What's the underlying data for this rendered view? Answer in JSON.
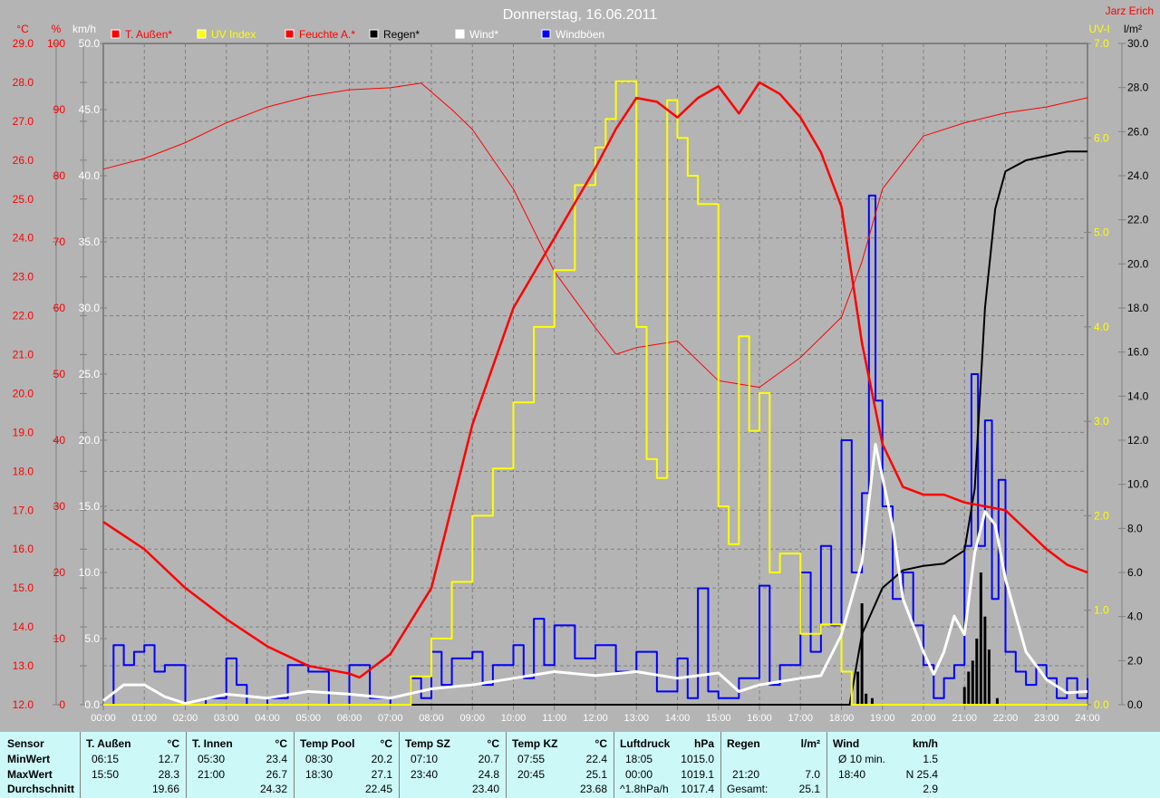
{
  "chart_data": {
    "type": "line",
    "title": "Donnerstag, 16.06.2011",
    "author": "Jarz Erich",
    "x_ticks": [
      "00:00",
      "01:00",
      "02:00",
      "03:00",
      "04:00",
      "05:00",
      "06:00",
      "07:00",
      "08:00",
      "09:00",
      "10:00",
      "11:00",
      "12:00",
      "13:00",
      "14:00",
      "15:00",
      "16:00",
      "17:00",
      "18:00",
      "19:00",
      "20:00",
      "21:00",
      "22:00",
      "23:00",
      "24:00"
    ],
    "xlim": [
      0,
      24
    ],
    "grid": true,
    "legend_placement": "top",
    "axes": {
      "temp": {
        "unit": "°C",
        "range": [
          12,
          29
        ],
        "step": 1,
        "color": "#ff0000"
      },
      "hum": {
        "unit": "%",
        "range": [
          0,
          100
        ],
        "step": 10,
        "color": "#ff0000"
      },
      "wind": {
        "unit": "km/h",
        "range": [
          0,
          50
        ],
        "step": 5,
        "color": "#ffffff"
      },
      "uv": {
        "unit": "UV-I",
        "range": [
          0,
          7
        ],
        "step": 1,
        "color": "#ffff00"
      },
      "rain": {
        "unit": "l/m²",
        "range": [
          0,
          30
        ],
        "step": 2,
        "color": "#000000"
      }
    },
    "series": [
      {
        "name": "T. Außen*",
        "axis": "temp",
        "color": "#ff0000",
        "width": 2.5,
        "x": [
          0,
          1,
          2,
          3,
          4,
          5,
          6,
          6.25,
          7,
          8,
          9,
          10,
          11,
          12,
          12.5,
          13,
          13.5,
          14,
          14.5,
          15,
          15.5,
          16,
          16.5,
          17,
          17.5,
          18,
          18.5,
          19,
          19.5,
          20,
          20.5,
          21,
          21.5,
          22,
          22.5,
          23,
          23.5,
          24
        ],
        "y": [
          16.7,
          16.0,
          15.0,
          14.2,
          13.5,
          13.0,
          12.8,
          12.7,
          13.3,
          15.0,
          19.2,
          22.2,
          24.0,
          25.8,
          26.8,
          27.6,
          27.5,
          27.1,
          27.6,
          27.9,
          27.2,
          28.0,
          27.7,
          27.1,
          26.2,
          24.8,
          21.3,
          18.7,
          17.6,
          17.4,
          17.4,
          17.2,
          17.1,
          17.0,
          16.5,
          16.0,
          15.6,
          15.4
        ]
      },
      {
        "name": "UV Index",
        "axis": "uv",
        "color": "#ffff00",
        "width": 2,
        "x": [
          0,
          7,
          7.5,
          8,
          8.5,
          9,
          9.5,
          10,
          10.5,
          11,
          11.5,
          12,
          12.25,
          12.5,
          12.75,
          13,
          13.25,
          13.5,
          13.75,
          14,
          14.25,
          14.5,
          15,
          15.25,
          15.5,
          15.75,
          16,
          16.25,
          16.5,
          17,
          17.5,
          18,
          18.25,
          24
        ],
        "y": [
          0,
          0,
          0.3,
          0.7,
          1.3,
          2.0,
          2.5,
          3.2,
          4.0,
          4.6,
          5.5,
          5.9,
          6.2,
          6.6,
          6.6,
          4.0,
          2.6,
          2.4,
          6.4,
          6.0,
          5.6,
          5.3,
          2.1,
          1.7,
          3.9,
          2.9,
          3.3,
          1.4,
          1.6,
          0.75,
          0.85,
          0.35,
          0,
          0
        ]
      },
      {
        "name": "Feuchte A.*",
        "axis": "hum",
        "color": "#ff0000",
        "width": 1,
        "x": [
          0,
          1,
          2,
          3,
          4,
          5,
          6,
          7,
          7.75,
          8.5,
          9,
          10,
          11,
          12,
          12.5,
          13,
          14,
          15,
          16,
          17,
          18,
          18.5,
          19,
          20,
          21,
          22,
          23,
          24
        ],
        "y": [
          81,
          82.6,
          85,
          88,
          90.4,
          92,
          93,
          93.3,
          94,
          90,
          87,
          78,
          65.5,
          57,
          53,
          54,
          55,
          49,
          48,
          52.5,
          58.6,
          67,
          78,
          86,
          88,
          89.5,
          90.4,
          91.8
        ]
      },
      {
        "name": "Regen*",
        "axis": "rain",
        "color": "#000000",
        "width": 2,
        "x": [
          0,
          18.2,
          18.5,
          19,
          19.5,
          20,
          20.5,
          21,
          21.25,
          21.5,
          21.75,
          22,
          22.5,
          23,
          23.5,
          24
        ],
        "y": [
          0,
          0,
          3.2,
          5.3,
          6.1,
          6.3,
          6.4,
          7.0,
          9.8,
          18,
          22.5,
          24.2,
          24.7,
          24.9,
          25.1,
          25.1
        ]
      },
      {
        "name": "Wind*",
        "axis": "wind",
        "color": "#ffffff",
        "width": 3,
        "x": [
          0,
          0.5,
          1,
          1.5,
          2,
          3,
          4,
          5,
          6,
          7,
          8,
          9,
          10,
          11,
          12,
          13,
          14,
          15,
          15.5,
          16,
          17,
          17.5,
          18,
          18.5,
          18.83,
          19.25,
          19.5,
          20,
          20.25,
          20.5,
          20.75,
          21,
          21.25,
          21.5,
          21.75,
          22,
          22.5,
          23,
          23.5,
          24
        ],
        "y": [
          0.3,
          1.5,
          1.5,
          0.6,
          0.1,
          0.8,
          0.5,
          1.0,
          0.8,
          0.5,
          1.2,
          1.5,
          2.0,
          2.5,
          2.2,
          2.5,
          2.0,
          2.4,
          1.0,
          1.5,
          2.0,
          2.2,
          5.3,
          10.8,
          19.7,
          13.5,
          8.0,
          4.0,
          2.3,
          4.0,
          6.7,
          5.3,
          11.5,
          14.6,
          13.6,
          9.5,
          4.0,
          1.9,
          0.9,
          1.0
        ]
      },
      {
        "name": "Windböen",
        "axis": "wind",
        "color": "#0000ff",
        "width": 2,
        "x": [
          0,
          0.25,
          0.5,
          0.75,
          1,
          1.25,
          1.5,
          2,
          2.5,
          3,
          3.25,
          3.5,
          4,
          4.5,
          5,
          5.5,
          6,
          6.5,
          7,
          7.5,
          7.75,
          8,
          8.25,
          8.5,
          9,
          9.25,
          9.5,
          10,
          10.25,
          10.5,
          10.75,
          11,
          11.5,
          12,
          12.5,
          13,
          13.5,
          14,
          14.25,
          14.5,
          14.75,
          15,
          15.5,
          16,
          16.25,
          16.5,
          17,
          17.25,
          17.5,
          17.75,
          18,
          18.25,
          18.5,
          18.67,
          18.83,
          19,
          19.25,
          19.5,
          19.75,
          20,
          20.25,
          20.5,
          20.75,
          21,
          21.17,
          21.33,
          21.5,
          21.67,
          21.83,
          22,
          22.25,
          22.5,
          22.75,
          23,
          23.25,
          23.5,
          23.75,
          24
        ],
        "y": [
          0,
          4.5,
          3.0,
          4.0,
          4.5,
          2.5,
          3.0,
          0,
          0.5,
          3.5,
          1.5,
          0,
          0.5,
          3.0,
          2.5,
          0,
          3.0,
          0.5,
          0,
          2.0,
          0.5,
          4.0,
          1.5,
          3.5,
          4.0,
          1.5,
          3.0,
          4.5,
          2.0,
          6.5,
          3.0,
          6.0,
          3.5,
          4.5,
          2.5,
          4.0,
          1.0,
          3.5,
          0.5,
          8.8,
          1.0,
          0.5,
          2.0,
          9.0,
          1.5,
          3.0,
          10.0,
          4.0,
          12.0,
          6.0,
          20.0,
          10.0,
          16.0,
          38.5,
          23.0,
          15.0,
          8.0,
          10.0,
          6.0,
          3.0,
          0.5,
          2.0,
          3.0,
          12.0,
          25.0,
          12.0,
          21.5,
          8.0,
          17.0,
          4.0,
          2.5,
          1.5,
          3.0,
          2.0,
          0.5,
          2.0,
          0.5,
          2.0
        ]
      }
    ],
    "rain_bars": {
      "axis": "rain",
      "color": "#000000",
      "x": [
        18.4,
        18.5,
        18.6,
        18.75,
        21.0,
        21.1,
        21.2,
        21.3,
        21.4,
        21.5,
        21.6,
        21.8
      ],
      "y": [
        1.5,
        4.6,
        0.5,
        0.3,
        0.8,
        1.5,
        2.0,
        3.0,
        6.0,
        4.0,
        2.5,
        0.3
      ]
    }
  },
  "legend": [
    {
      "label": "T. Außen*",
      "color": "#ff0000",
      "text_color": "#ff0000"
    },
    {
      "label": "UV Index",
      "color": "#ffff00",
      "text_color": "#ffff00"
    },
    {
      "label": "Feuchte A.*",
      "color": "#ff0000",
      "text_color": "#ff0000"
    },
    {
      "label": "Regen*",
      "color": "#000000",
      "text_color": "#000000"
    },
    {
      "label": "Wind*",
      "color": "#ffffff",
      "text_color": "#ffffff"
    },
    {
      "label": "Windböen",
      "color": "#0000ff",
      "text_color": "#ffffff"
    }
  ],
  "table": {
    "row_labels": [
      "Sensor",
      "MinWert",
      "MaxWert",
      "Durchschnitt"
    ],
    "columns": [
      {
        "name": "T. Außen",
        "unit": "°C",
        "min_time": "06:15",
        "min": "12.7",
        "max_time": "15:50",
        "max": "28.3",
        "avg_label": "",
        "avg": "19.66"
      },
      {
        "name": "T. Innen",
        "unit": "°C",
        "min_time": "05:30",
        "min": "23.4",
        "max_time": "21:00",
        "max": "26.7",
        "avg_label": "",
        "avg": "24.32"
      },
      {
        "name": "Temp Pool",
        "unit": "°C",
        "min_time": "08:30",
        "min": "20.2",
        "max_time": "18:30",
        "max": "27.1",
        "avg_label": "",
        "avg": "22.45"
      },
      {
        "name": "Temp SZ",
        "unit": "°C",
        "min_time": "07:10",
        "min": "20.7",
        "max_time": "23:40",
        "max": "24.8",
        "avg_label": "",
        "avg": "23.40"
      },
      {
        "name": "Temp KZ",
        "unit": "°C",
        "min_time": "07:55",
        "min": "22.4",
        "max_time": "20:45",
        "max": "25.1",
        "avg_label": "",
        "avg": "23.68"
      },
      {
        "name": "Luftdruck",
        "unit": "hPa",
        "min_time": "18:05",
        "min": "1015.0",
        "max_time": "00:00",
        "max": "1019.1",
        "avg_label": "^1.8hPa/h",
        "avg": "1017.4"
      },
      {
        "name": "Regen",
        "unit": "l/m²",
        "min_time": "",
        "min": "",
        "max_time": "21:20",
        "max": "7.0",
        "avg_label": "Gesamt:",
        "avg": "25.1"
      },
      {
        "name": "Wind",
        "unit": "km/h",
        "min_time": "Ø 10 min.",
        "min": "1.5",
        "max_time": "18:40",
        "max": "N 25.4",
        "avg_label": "",
        "avg": "2.9"
      }
    ]
  }
}
